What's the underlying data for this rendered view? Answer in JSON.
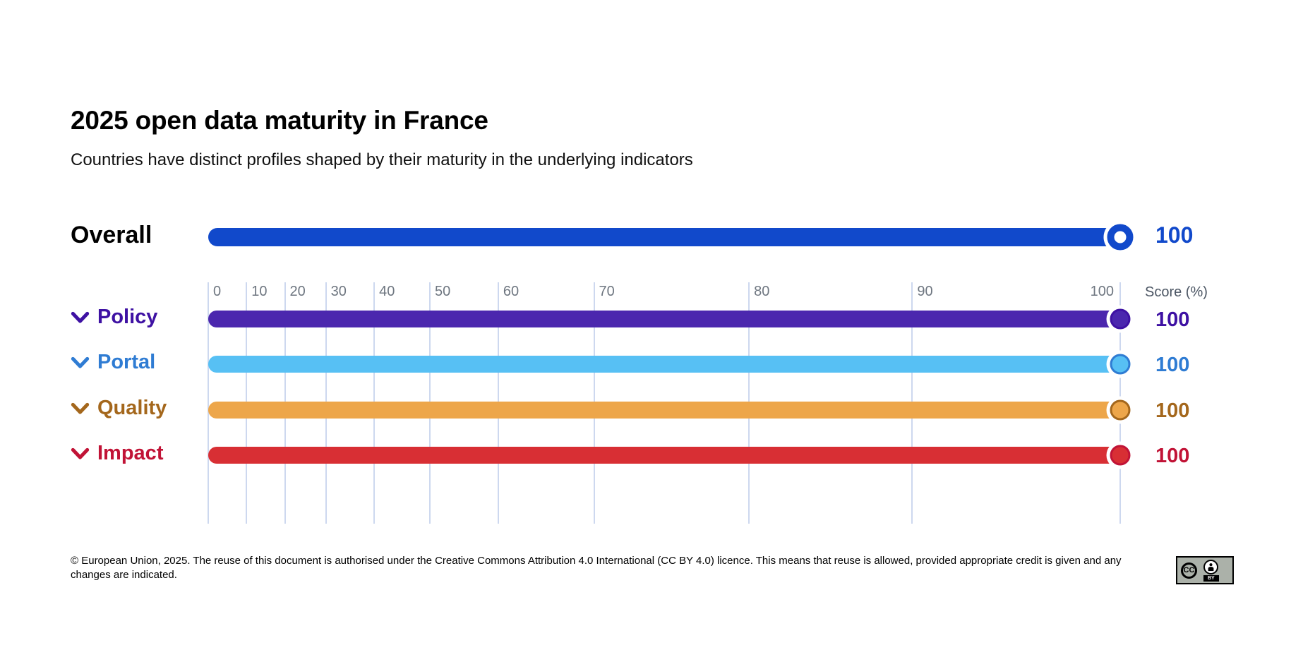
{
  "header": {
    "title": "2025 open data maturity in France",
    "subtitle": "Countries have distinct profiles shaped by their maturity in the underlying indicators"
  },
  "chart_data": {
    "type": "bar",
    "orientation": "horizontal",
    "title": "2025 open data maturity in France",
    "subtitle": "Countries have distinct profiles shaped by their maturity in the underlying indicators",
    "categories": [
      "Overall",
      "Policy",
      "Portal",
      "Quality",
      "Impact"
    ],
    "values": [
      100,
      100,
      100,
      100,
      100
    ],
    "xlabel": "Score (%)",
    "xlim": [
      0,
      100
    ],
    "x_ticks": [
      0,
      10,
      20,
      30,
      40,
      50,
      60,
      70,
      80,
      90,
      100
    ],
    "x_tick_positions_pct": [
      0,
      4.2,
      8.4,
      12.9,
      18.2,
      24.3,
      31.8,
      42.3,
      59.3,
      77.2,
      100
    ],
    "axis_scale_note": "non-linear tick spacing, gridlines on",
    "grid": true,
    "legend": "none",
    "bar_colors": [
      "#1149cb",
      "#4b27ae",
      "#57c0f4",
      "#eda64a",
      "#d82f34"
    ]
  },
  "axis": {
    "unit_label": "Score (%)",
    "ticks": [
      {
        "label": "0",
        "pos": 0
      },
      {
        "label": "10",
        "pos": 4.2
      },
      {
        "label": "20",
        "pos": 8.4
      },
      {
        "label": "30",
        "pos": 12.9
      },
      {
        "label": "40",
        "pos": 18.2
      },
      {
        "label": "50",
        "pos": 24.3
      },
      {
        "label": "60",
        "pos": 31.8
      },
      {
        "label": "70",
        "pos": 42.3
      },
      {
        "label": "80",
        "pos": 59.3
      },
      {
        "label": "90",
        "pos": 77.2
      },
      {
        "label": "100",
        "pos": 100,
        "align": "before"
      }
    ]
  },
  "overall": {
    "label": "Overall",
    "value": "100",
    "value_num": 100,
    "bar_color": "#1149cb",
    "value_color": "#1149cb"
  },
  "indicators": [
    {
      "label": "Policy",
      "value": "100",
      "value_num": 100,
      "bar_color": "#4b27ae",
      "accent_color": "#3e11a3"
    },
    {
      "label": "Portal",
      "value": "100",
      "value_num": 100,
      "bar_color": "#57c0f4",
      "accent_color": "#2f7cd3"
    },
    {
      "label": "Quality",
      "value": "100",
      "value_num": 100,
      "bar_color": "#eda64a",
      "accent_color": "#a4671c"
    },
    {
      "label": "Impact",
      "value": "100",
      "value_num": 100,
      "bar_color": "#d82f34",
      "accent_color": "#c11336"
    }
  ],
  "footer": {
    "copyright": "© European Union, 2025. The reuse of this document is authorised under the Creative Commons Attribution 4.0 International (CC BY 4.0) licence. This means that reuse is allowed, provided appropriate credit is given and any changes are indicated.",
    "license": {
      "cc_label": "CC",
      "by_label": "BY"
    }
  },
  "colors": {
    "gridline": "#cdd8ef",
    "tick_label": "#6e7680",
    "axis_label": "#4b5563",
    "title": "#000000"
  }
}
